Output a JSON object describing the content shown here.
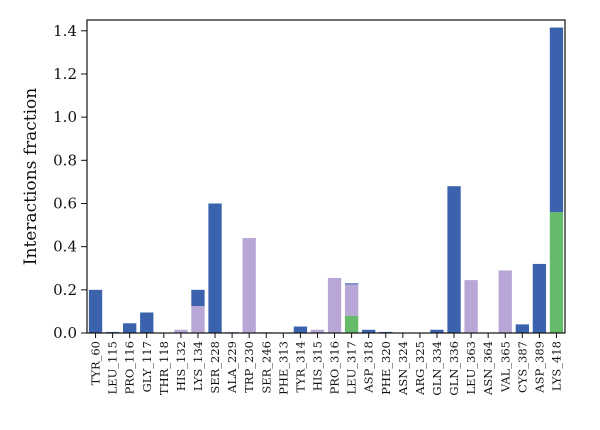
{
  "chart_data": {
    "type": "bar",
    "stacked": true,
    "title": "",
    "xlabel": "",
    "ylabel": "Interactions fraction",
    "ylim": [
      0,
      1.45
    ],
    "yticks": [
      0.0,
      0.2,
      0.4,
      0.6,
      0.8,
      1.0,
      1.2,
      1.4
    ],
    "ytick_labels": [
      "0.0",
      "0.2",
      "0.4",
      "0.6",
      "0.8",
      "1.0",
      "1.2",
      "1.4"
    ],
    "grid": false,
    "legend": "none",
    "categories": [
      "TYR_60",
      "LEU_115",
      "PRO_116",
      "GLY_117",
      "THR_118",
      "HIS_132",
      "LYS_134",
      "SER_228",
      "ALA_229",
      "TRP_230",
      "SER_246",
      "PHE_313",
      "TYR_314",
      "HIS_315",
      "PRO_316",
      "LEU_317",
      "ASP_318",
      "PHE_320",
      "ASN_324",
      "ARG_325",
      "GLN_334",
      "GLN_336",
      "LEU_363",
      "ASN_364",
      "VAL_365",
      "CYS_387",
      "ASP_389",
      "LYS_418"
    ],
    "series": [
      {
        "color": "#66bb6a",
        "values": [
          0,
          0,
          0,
          0,
          0,
          0,
          0,
          0,
          0,
          0,
          0,
          0,
          0,
          0,
          0,
          0.08,
          0,
          0,
          0,
          0,
          0,
          0,
          0,
          0,
          0,
          0,
          0,
          0.56
        ]
      },
      {
        "color": "#b7a6d6",
        "values": [
          0,
          0,
          0,
          0,
          0,
          0.015,
          0.125,
          0,
          0.005,
          0.44,
          0,
          0,
          0,
          0.015,
          0.255,
          0.145,
          0,
          0,
          0,
          0,
          0,
          0,
          0.245,
          0,
          0.29,
          0,
          0,
          0
        ]
      },
      {
        "color": "#3b62ad",
        "values": [
          0.2,
          0.005,
          0.045,
          0.095,
          0,
          0,
          0.075,
          0.6,
          0,
          0,
          0.003,
          0,
          0.03,
          0,
          0,
          0.005,
          0.015,
          0.005,
          0,
          0,
          0.015,
          0.68,
          0,
          0,
          0,
          0.04,
          0.32,
          0.855
        ]
      }
    ]
  }
}
